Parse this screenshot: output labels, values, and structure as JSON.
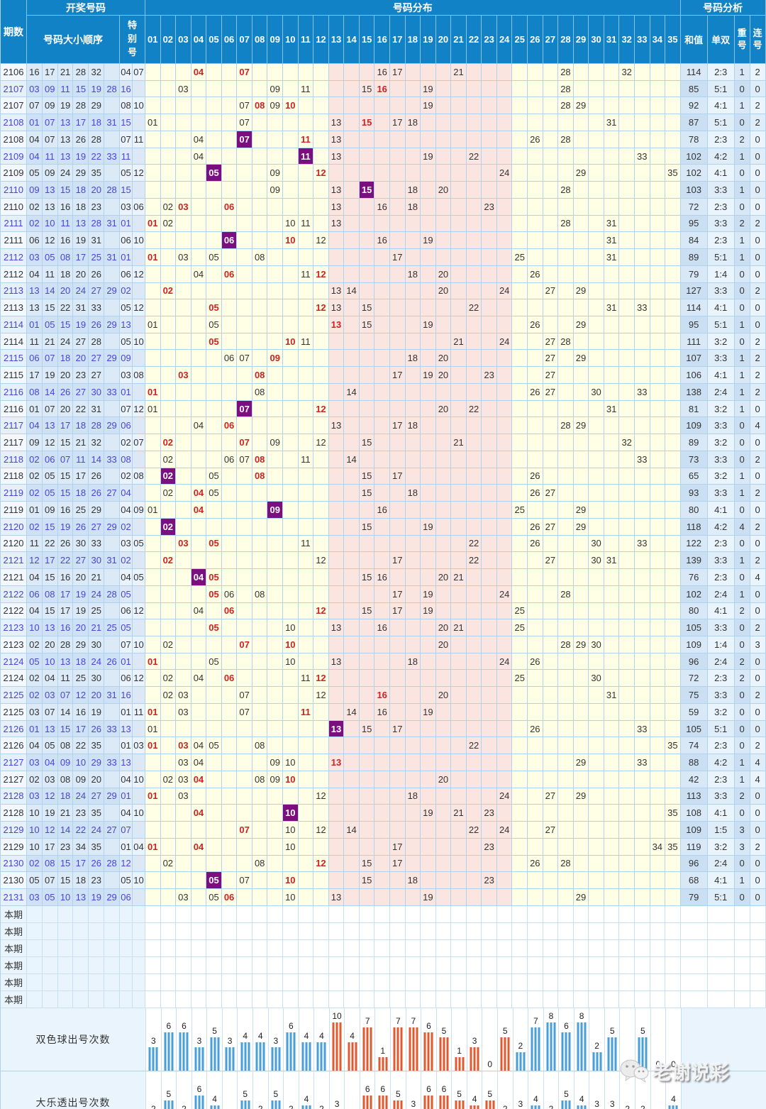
{
  "header": {
    "period": "期数",
    "winning_numbers": "开奖号码",
    "order_label": "号码大小顺序",
    "special_label": "特别号",
    "distribution": "号码分布",
    "analysis": "号码分析",
    "sum": "和值",
    "odd_even": "单双",
    "repeat": "重号",
    "consecutive": "连号",
    "columns": [
      "01",
      "02",
      "03",
      "04",
      "05",
      "06",
      "07",
      "08",
      "09",
      "10",
      "11",
      "12",
      "13",
      "14",
      "15",
      "16",
      "17",
      "18",
      "19",
      "20",
      "21",
      "22",
      "23",
      "24",
      "25",
      "26",
      "27",
      "28",
      "29",
      "30",
      "31",
      "32",
      "33",
      "34",
      "35"
    ]
  },
  "rows": [
    {
      "p": "2106",
      "t": "dlt",
      "f": [
        16,
        17,
        21,
        28,
        32
      ],
      "s": [
        4,
        7
      ],
      "sum": "114",
      "oe": "2:3",
      "rep": "1",
      "con": "2"
    },
    {
      "p": "2107",
      "t": "ssq",
      "f": [
        3,
        9,
        11,
        15,
        19,
        28
      ],
      "s": [
        16
      ],
      "sum": "85",
      "oe": "5:1",
      "rep": "0",
      "con": "0"
    },
    {
      "p": "2107",
      "t": "dlt",
      "f": [
        7,
        9,
        19,
        28,
        29
      ],
      "s": [
        8,
        10
      ],
      "sum": "92",
      "oe": "4:1",
      "rep": "1",
      "con": "2"
    },
    {
      "p": "2108",
      "t": "ssq",
      "f": [
        1,
        7,
        13,
        17,
        18,
        31
      ],
      "s": [
        15
      ],
      "sum": "87",
      "oe": "5:1",
      "rep": "0",
      "con": "2"
    },
    {
      "p": "2108",
      "t": "dlt",
      "f": [
        4,
        7,
        13,
        26,
        28
      ],
      "s": [
        7,
        11
      ],
      "sum": "78",
      "oe": "2:3",
      "rep": "2",
      "con": "0"
    },
    {
      "p": "2109",
      "t": "ssq",
      "f": [
        4,
        11,
        13,
        19,
        22,
        33
      ],
      "s": [
        11
      ],
      "sum": "102",
      "oe": "4:2",
      "rep": "1",
      "con": "0"
    },
    {
      "p": "2109",
      "t": "dlt",
      "f": [
        5,
        9,
        24,
        29,
        35
      ],
      "s": [
        5,
        12
      ],
      "sum": "102",
      "oe": "4:1",
      "rep": "0",
      "con": "0"
    },
    {
      "p": "2110",
      "t": "ssq",
      "f": [
        9,
        13,
        15,
        18,
        20,
        28
      ],
      "s": [
        15
      ],
      "sum": "103",
      "oe": "3:3",
      "rep": "1",
      "con": "0"
    },
    {
      "p": "2110",
      "t": "dlt",
      "f": [
        2,
        13,
        16,
        18,
        23
      ],
      "s": [
        3,
        6
      ],
      "sum": "72",
      "oe": "2:3",
      "rep": "0",
      "con": "0"
    },
    {
      "p": "2111",
      "t": "ssq",
      "f": [
        2,
        10,
        11,
        13,
        28,
        31
      ],
      "s": [
        1
      ],
      "sum": "95",
      "oe": "3:3",
      "rep": "2",
      "con": "2"
    },
    {
      "p": "2111",
      "t": "dlt",
      "f": [
        6,
        12,
        16,
        19,
        31
      ],
      "s": [
        6,
        10
      ],
      "sum": "84",
      "oe": "2:3",
      "rep": "1",
      "con": "0"
    },
    {
      "p": "2112",
      "t": "ssq",
      "f": [
        3,
        5,
        8,
        17,
        25,
        31
      ],
      "s": [
        1
      ],
      "sum": "89",
      "oe": "5:1",
      "rep": "1",
      "con": "0"
    },
    {
      "p": "2112",
      "t": "dlt",
      "f": [
        4,
        11,
        18,
        20,
        26
      ],
      "s": [
        6,
        12
      ],
      "sum": "79",
      "oe": "1:4",
      "rep": "0",
      "con": "0"
    },
    {
      "p": "2113",
      "t": "ssq",
      "f": [
        13,
        14,
        20,
        24,
        27,
        29
      ],
      "s": [
        2
      ],
      "sum": "127",
      "oe": "3:3",
      "rep": "0",
      "con": "2"
    },
    {
      "p": "2113",
      "t": "dlt",
      "f": [
        13,
        15,
        22,
        31,
        33
      ],
      "s": [
        5,
        12
      ],
      "sum": "114",
      "oe": "4:1",
      "rep": "0",
      "con": "0"
    },
    {
      "p": "2114",
      "t": "ssq",
      "f": [
        1,
        5,
        15,
        19,
        26,
        29
      ],
      "s": [
        13
      ],
      "sum": "95",
      "oe": "5:1",
      "rep": "1",
      "con": "0"
    },
    {
      "p": "2114",
      "t": "dlt",
      "f": [
        11,
        21,
        24,
        27,
        28
      ],
      "s": [
        5,
        10
      ],
      "sum": "111",
      "oe": "3:2",
      "rep": "0",
      "con": "2"
    },
    {
      "p": "2115",
      "t": "ssq",
      "f": [
        6,
        7,
        18,
        20,
        27,
        29
      ],
      "s": [
        9
      ],
      "sum": "107",
      "oe": "3:3",
      "rep": "1",
      "con": "2"
    },
    {
      "p": "2115",
      "t": "dlt",
      "f": [
        17,
        19,
        20,
        23,
        27
      ],
      "s": [
        3,
        8
      ],
      "sum": "106",
      "oe": "4:1",
      "rep": "1",
      "con": "2"
    },
    {
      "p": "2116",
      "t": "ssq",
      "f": [
        8,
        14,
        26,
        27,
        30,
        33
      ],
      "s": [
        1
      ],
      "sum": "138",
      "oe": "2:4",
      "rep": "1",
      "con": "2"
    },
    {
      "p": "2116",
      "t": "dlt",
      "f": [
        1,
        7,
        20,
        22,
        31
      ],
      "s": [
        7,
        12
      ],
      "sum": "81",
      "oe": "3:2",
      "rep": "1",
      "con": "0"
    },
    {
      "p": "2117",
      "t": "ssq",
      "f": [
        4,
        13,
        17,
        18,
        28,
        29
      ],
      "s": [
        6
      ],
      "sum": "109",
      "oe": "3:3",
      "rep": "0",
      "con": "4"
    },
    {
      "p": "2117",
      "t": "dlt",
      "f": [
        9,
        12,
        15,
        21,
        32
      ],
      "s": [
        2,
        7
      ],
      "sum": "89",
      "oe": "3:2",
      "rep": "0",
      "con": "0"
    },
    {
      "p": "2118",
      "t": "ssq",
      "f": [
        2,
        6,
        7,
        11,
        14,
        33
      ],
      "s": [
        8
      ],
      "sum": "73",
      "oe": "3:3",
      "rep": "0",
      "con": "2"
    },
    {
      "p": "2118",
      "t": "dlt",
      "f": [
        2,
        5,
        15,
        17,
        26
      ],
      "s": [
        2,
        8
      ],
      "sum": "65",
      "oe": "3:2",
      "rep": "1",
      "con": "0"
    },
    {
      "p": "2119",
      "t": "ssq",
      "f": [
        2,
        5,
        15,
        18,
        26,
        27
      ],
      "s": [
        4
      ],
      "sum": "93",
      "oe": "3:3",
      "rep": "1",
      "con": "2"
    },
    {
      "p": "2119",
      "t": "dlt",
      "f": [
        1,
        9,
        16,
        25,
        29
      ],
      "s": [
        4,
        9
      ],
      "sum": "80",
      "oe": "4:1",
      "rep": "0",
      "con": "0"
    },
    {
      "p": "2120",
      "t": "ssq",
      "f": [
        2,
        15,
        19,
        26,
        27,
        29
      ],
      "s": [
        2
      ],
      "sum": "118",
      "oe": "4:2",
      "rep": "4",
      "con": "2"
    },
    {
      "p": "2120",
      "t": "dlt",
      "f": [
        11,
        22,
        26,
        30,
        33
      ],
      "s": [
        3,
        5
      ],
      "sum": "122",
      "oe": "2:3",
      "rep": "0",
      "con": "0"
    },
    {
      "p": "2121",
      "t": "ssq",
      "f": [
        12,
        17,
        22,
        27,
        30,
        31
      ],
      "s": [
        2
      ],
      "sum": "139",
      "oe": "3:3",
      "rep": "1",
      "con": "2"
    },
    {
      "p": "2121",
      "t": "dlt",
      "f": [
        4,
        15,
        16,
        20,
        21
      ],
      "s": [
        4,
        5
      ],
      "sum": "76",
      "oe": "2:3",
      "rep": "0",
      "con": "4"
    },
    {
      "p": "2122",
      "t": "ssq",
      "f": [
        6,
        8,
        17,
        19,
        24,
        28
      ],
      "s": [
        5
      ],
      "sum": "102",
      "oe": "2:4",
      "rep": "1",
      "con": "0"
    },
    {
      "p": "2122",
      "t": "dlt",
      "f": [
        4,
        15,
        17,
        19,
        25
      ],
      "s": [
        6,
        12
      ],
      "sum": "80",
      "oe": "4:1",
      "rep": "2",
      "con": "0"
    },
    {
      "p": "2123",
      "t": "ssq",
      "f": [
        10,
        13,
        16,
        20,
        21,
        25
      ],
      "s": [
        5
      ],
      "sum": "105",
      "oe": "3:3",
      "rep": "0",
      "con": "2"
    },
    {
      "p": "2123",
      "t": "dlt",
      "f": [
        2,
        20,
        28,
        29,
        30
      ],
      "s": [
        7,
        10
      ],
      "sum": "109",
      "oe": "1:4",
      "rep": "0",
      "con": "3"
    },
    {
      "p": "2124",
      "t": "ssq",
      "f": [
        5,
        10,
        13,
        18,
        24,
        26
      ],
      "s": [
        1
      ],
      "sum": "96",
      "oe": "2:4",
      "rep": "2",
      "con": "0"
    },
    {
      "p": "2124",
      "t": "dlt",
      "f": [
        2,
        4,
        11,
        25,
        30
      ],
      "s": [
        6,
        12
      ],
      "sum": "72",
      "oe": "2:3",
      "rep": "2",
      "con": "0"
    },
    {
      "p": "2125",
      "t": "ssq",
      "f": [
        2,
        3,
        7,
        12,
        20,
        31
      ],
      "s": [
        16
      ],
      "sum": "75",
      "oe": "3:3",
      "rep": "0",
      "con": "2"
    },
    {
      "p": "2125",
      "t": "dlt",
      "f": [
        3,
        7,
        14,
        16,
        19
      ],
      "s": [
        1,
        11
      ],
      "sum": "59",
      "oe": "3:2",
      "rep": "0",
      "con": "0"
    },
    {
      "p": "2126",
      "t": "ssq",
      "f": [
        1,
        13,
        15,
        17,
        26,
        33
      ],
      "s": [
        13
      ],
      "sum": "105",
      "oe": "5:1",
      "rep": "0",
      "con": "0"
    },
    {
      "p": "2126",
      "t": "dlt",
      "f": [
        4,
        5,
        8,
        22,
        35
      ],
      "s": [
        1,
        3
      ],
      "sum": "74",
      "oe": "2:3",
      "rep": "0",
      "con": "2"
    },
    {
      "p": "2127",
      "t": "ssq",
      "f": [
        3,
        4,
        9,
        10,
        29,
        33
      ],
      "s": [
        13
      ],
      "sum": "88",
      "oe": "4:2",
      "rep": "1",
      "con": "4"
    },
    {
      "p": "2127",
      "t": "dlt",
      "f": [
        2,
        3,
        8,
        9,
        20
      ],
      "s": [
        4,
        10
      ],
      "sum": "42",
      "oe": "2:3",
      "rep": "1",
      "con": "4"
    },
    {
      "p": "2128",
      "t": "ssq",
      "f": [
        3,
        12,
        18,
        24,
        27,
        29
      ],
      "s": [
        1
      ],
      "sum": "113",
      "oe": "3:3",
      "rep": "2",
      "con": "0"
    },
    {
      "p": "2128",
      "t": "dlt",
      "f": [
        10,
        19,
        21,
        23,
        35
      ],
      "s": [
        4,
        10
      ],
      "sum": "108",
      "oe": "4:1",
      "rep": "0",
      "con": "0"
    },
    {
      "p": "2129",
      "t": "ssq",
      "f": [
        10,
        12,
        14,
        22,
        24,
        27
      ],
      "s": [
        7
      ],
      "sum": "109",
      "oe": "1:5",
      "rep": "3",
      "con": "0"
    },
    {
      "p": "2129",
      "t": "dlt",
      "f": [
        10,
        17,
        23,
        34,
        35
      ],
      "s": [
        1,
        4
      ],
      "sum": "119",
      "oe": "3:2",
      "rep": "3",
      "con": "2"
    },
    {
      "p": "2130",
      "t": "ssq",
      "f": [
        2,
        8,
        15,
        17,
        26,
        28
      ],
      "s": [
        12
      ],
      "sum": "96",
      "oe": "2:4",
      "rep": "0",
      "con": "0"
    },
    {
      "p": "2130",
      "t": "dlt",
      "f": [
        5,
        7,
        15,
        18,
        23
      ],
      "s": [
        5,
        10
      ],
      "sum": "68",
      "oe": "4:1",
      "rep": "1",
      "con": "0"
    },
    {
      "p": "2131",
      "t": "ssq",
      "f": [
        3,
        5,
        10,
        13,
        19,
        29
      ],
      "s": [
        6
      ],
      "sum": "79",
      "oe": "5:1",
      "rep": "0",
      "con": "0"
    }
  ],
  "pending": {
    "label": "本期",
    "rows": [
      "本期",
      "本期",
      "本期",
      "本期",
      "本期",
      "本期"
    ]
  },
  "chart_data": [
    {
      "type": "bar",
      "title": "双色球出号次数",
      "categories": [
        "01",
        "02",
        "03",
        "04",
        "05",
        "06",
        "07",
        "08",
        "09",
        "10",
        "11",
        "12",
        "13",
        "14",
        "15",
        "16",
        "17",
        "18",
        "19",
        "20",
        "21",
        "22",
        "23",
        "24",
        "25",
        "26",
        "27",
        "28",
        "29",
        "30",
        "31",
        "32",
        "33",
        "34",
        "35"
      ],
      "values": [
        3,
        6,
        6,
        3,
        5,
        3,
        4,
        4,
        3,
        6,
        4,
        4,
        10,
        4,
        7,
        1,
        7,
        7,
        6,
        5,
        1,
        3,
        0,
        5,
        2,
        7,
        8,
        6,
        8,
        2,
        5,
        0,
        5,
        0,
        0
      ],
      "xlabel": "",
      "ylabel": "",
      "ylim": [
        0,
        10
      ],
      "orange_zone": [
        13,
        24
      ]
    },
    {
      "type": "bar",
      "title": "大乐透出号次数",
      "categories": [
        "01",
        "02",
        "03",
        "04",
        "05",
        "06",
        "07",
        "08",
        "09",
        "10",
        "11",
        "12",
        "13",
        "14",
        "15",
        "16",
        "17",
        "18",
        "19",
        "20",
        "21",
        "22",
        "23",
        "24",
        "25",
        "26",
        "27",
        "28",
        "29",
        "30",
        "31",
        "32",
        "33",
        "34",
        "35"
      ],
      "values": [
        2,
        5,
        2,
        6,
        4,
        1,
        5,
        2,
        5,
        2,
        4,
        2,
        3,
        1,
        6,
        6,
        5,
        3,
        6,
        6,
        5,
        4,
        5,
        2,
        3,
        4,
        2,
        5,
        4,
        3,
        3,
        2,
        2,
        1,
        4
      ],
      "xlabel": "",
      "ylabel": "",
      "ylim": [
        0,
        10
      ],
      "orange_zone": [
        13,
        24
      ]
    }
  ],
  "watermark": {
    "text": "老谢说彩",
    "icon": "wechat-icon"
  },
  "colors": {
    "header_bg": "#1182C5",
    "header_line": "rgba(255,255,255,0.5)",
    "grid_line": "#AFD3EE",
    "dist_yellow": "#FFFFE6",
    "dist_pink": "#FBE5E1",
    "purple": "#7B0F80",
    "red": "#CC2222",
    "text_dark": "#333333",
    "ssq_text": "#4646D9",
    "dlt_period_bg": "#F2F8FE",
    "dlt_num_bg": "#DCEAF8",
    "dlt_special_bg": "#EAF3FB",
    "ssq_period_bg": "#E6F0FA",
    "ssq_num_bg": "#CFE1F4",
    "ssq_special_bg": "#DCE8F6",
    "dlt_ana_dark": "#D8E8F7",
    "dlt_ana_light": "#EAF4FC",
    "ssq_ana_dark": "#CBDFF2",
    "ssq_ana_light": "#DFEDF8",
    "pending_bg": "#E9F4FD",
    "pending_line": "#C9E0F2",
    "bar_blue": "#4A9FD8",
    "bar_orange": "#E05A30"
  }
}
